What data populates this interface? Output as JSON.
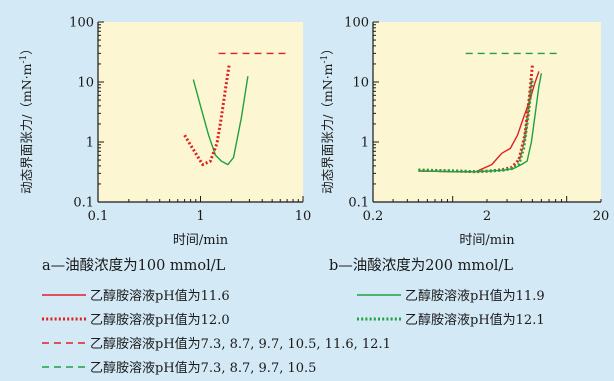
{
  "chart_data": [
    {
      "type": "line",
      "panel": "a",
      "caption": "a—油酸浓度为100  mmol/L",
      "xlabel": "时间/min",
      "ylabel": "动态界面张力/（mN·m-1）",
      "xscale": "log",
      "yscale": "log",
      "xlim": [
        0.1,
        10
      ],
      "ylim": [
        0.1,
        100
      ],
      "xticks": [
        "0.1",
        "1",
        "10"
      ],
      "yticks": [
        "0.1",
        "1",
        "10",
        "100"
      ],
      "grid": false,
      "series": [
        {
          "name": "乙醇胺溶液pH值为11.6",
          "color": "#e02020",
          "dash": "solid",
          "x": [],
          "y": []
        },
        {
          "name": "乙醇胺溶液pH值为11.9",
          "color": "#20a040",
          "dash": "solid",
          "x": [
            0.85,
            1.0,
            1.2,
            1.4,
            1.6,
            1.85,
            2.1,
            2.5,
            2.9
          ],
          "y": [
            11,
            4.0,
            1.3,
            0.6,
            0.48,
            0.42,
            0.55,
            2.5,
            12.5
          ]
        },
        {
          "name": "乙醇胺溶液pH值为12.0",
          "color": "#e02020",
          "dash": "dotted",
          "x": [
            0.7,
            0.85,
            1.05,
            1.25,
            1.45,
            1.6,
            1.75,
            1.9
          ],
          "y": [
            1.3,
            0.75,
            0.42,
            0.48,
            0.95,
            2.6,
            7.5,
            19
          ]
        },
        {
          "name": "乙醇胺溶液pH值为12.1",
          "color": "#20a040",
          "dash": "dotted",
          "x": [],
          "y": []
        },
        {
          "name": "乙醇胺溶液pH值为7.3, 8.7, 9.7, 10.5, 11.6, 12.1",
          "color": "#e02020",
          "dash": "dashed",
          "x": [
            1.5,
            7.5
          ],
          "y": [
            30,
            30
          ]
        },
        {
          "name": "乙醇胺溶液pH值为7.3, 8.7, 9.7, 10.5",
          "color": "#20a040",
          "dash": "dashed",
          "x": [],
          "y": []
        }
      ]
    },
    {
      "type": "line",
      "panel": "b",
      "caption": "b—油酸浓度为200  mmol/L",
      "xlabel": "时间/min",
      "ylabel": "动态界面张力/（mN·m-1）",
      "xscale": "log",
      "yscale": "log",
      "xlim": [
        0.2,
        20
      ],
      "ylim": [
        0.1,
        100
      ],
      "xticks": [
        "0.2",
        "2",
        "20"
      ],
      "yticks": [
        "0.1",
        "1",
        "10",
        "100"
      ],
      "grid": false,
      "series": [
        {
          "name": "乙醇胺溶液pH值为11.6",
          "color": "#e02020",
          "dash": "solid",
          "x": [
            0.5,
            1.0,
            1.6,
            2.2,
            2.7,
            3.2,
            3.7,
            4.2,
            4.8,
            5.2,
            5.7
          ],
          "y": [
            0.33,
            0.32,
            0.32,
            0.42,
            0.65,
            0.78,
            1.3,
            2.6,
            5.2,
            9.0,
            15
          ]
        },
        {
          "name": "乙醇胺溶液pH值为11.9",
          "color": "#20a040",
          "dash": "solid",
          "x": [
            0.5,
            1.0,
            1.6,
            2.2,
            2.8,
            3.4,
            4.0,
            4.5,
            4.9,
            5.3,
            5.7,
            6.0
          ],
          "y": [
            0.33,
            0.32,
            0.32,
            0.33,
            0.34,
            0.36,
            0.42,
            0.48,
            1.0,
            3.0,
            8.5,
            14
          ]
        },
        {
          "name": "乙醇胺溶液pH值为12.0",
          "color": "#e02020",
          "dash": "dotted",
          "x": [
            0.5,
            1.0,
            1.6,
            2.2,
            2.8,
            3.3,
            3.8,
            4.3,
            4.7,
            5.0
          ],
          "y": [
            0.34,
            0.33,
            0.32,
            0.33,
            0.35,
            0.38,
            0.5,
            1.3,
            5.5,
            19
          ]
        },
        {
          "name": "乙醇胺溶液pH值为12.1",
          "color": "#20a040",
          "dash": "dotted",
          "x": [
            0.5,
            1.0,
            1.6,
            2.2,
            2.8,
            3.3,
            3.8,
            4.2,
            4.6,
            5.0
          ],
          "y": [
            0.34,
            0.33,
            0.32,
            0.33,
            0.34,
            0.36,
            0.42,
            0.8,
            2.8,
            11.5
          ]
        },
        {
          "name": "乙醇胺溶液pH值为7.3, 8.7, 9.7, 10.5, 11.6, 12.1",
          "color": "#e02020",
          "dash": "dashed",
          "x": [],
          "y": []
        },
        {
          "name": "乙醇胺溶液pH值为7.3, 8.7, 9.7, 10.5",
          "color": "#20a040",
          "dash": "dashed",
          "x": [
            1.3,
            8.5
          ],
          "y": [
            30,
            30
          ]
        }
      ]
    }
  ],
  "legend": {
    "entries": [
      {
        "label": "乙醇胺溶液pH值为11.6",
        "color": "#e02020",
        "dash": "solid"
      },
      {
        "label": "乙醇胺溶液pH值为11.9",
        "color": "#20a040",
        "dash": "solid"
      },
      {
        "label": "乙醇胺溶液pH值为12.0",
        "color": "#e02020",
        "dash": "dotted"
      },
      {
        "label": "乙醇胺溶液pH值为12.1",
        "color": "#20a040",
        "dash": "dotted"
      },
      {
        "label": "乙醇胺溶液pH值为7.3, 8.7, 9.7, 10.5, 11.6, 12.1",
        "color": "#e02020",
        "dash": "dashed"
      },
      {
        "label": "乙醇胺溶液pH值为7.3, 8.7, 9.7, 10.5",
        "color": "#20a040",
        "dash": "dashed"
      }
    ]
  },
  "colors": {
    "background": "#d3e9f5",
    "plot_area": "#fcf7d2",
    "axis": "#1a1a1a"
  }
}
